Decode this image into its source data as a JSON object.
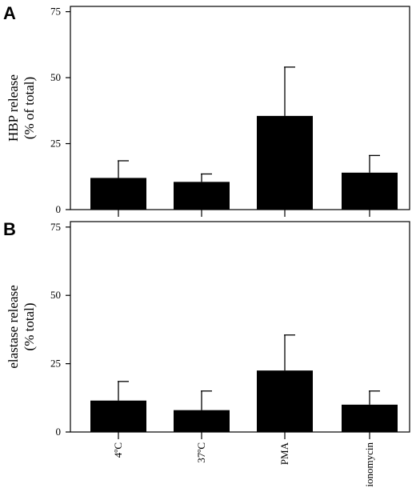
{
  "chart_data": [
    {
      "panel": "A",
      "type": "bar",
      "categories": [
        "4ºC",
        "37ºC",
        "PMA",
        "ionomycin"
      ],
      "values": [
        12,
        10.5,
        35.5,
        14
      ],
      "errors": [
        6.5,
        3,
        18.5,
        6.5
      ],
      "ylabel_lines": [
        "HBP release",
        "(% of total)"
      ],
      "xlabel": "",
      "ylim": [
        0,
        77
      ],
      "yticks": [
        0,
        25,
        50,
        75
      ],
      "grid": false
    },
    {
      "panel": "B",
      "type": "bar",
      "categories": [
        "4ºC",
        "37ºC",
        "PMA",
        "ionomycin"
      ],
      "values": [
        11.5,
        8,
        22.5,
        10
      ],
      "errors": [
        7,
        7,
        13,
        5
      ],
      "ylabel_lines": [
        "elastase release",
        "(% total)"
      ],
      "xlabel": "",
      "ylim": [
        0,
        77
      ],
      "yticks": [
        0,
        25,
        50,
        75
      ],
      "grid": false
    }
  ],
  "category_labels": [
    "4ºC",
    "37ºC",
    "PMA",
    "ionomycin"
  ]
}
